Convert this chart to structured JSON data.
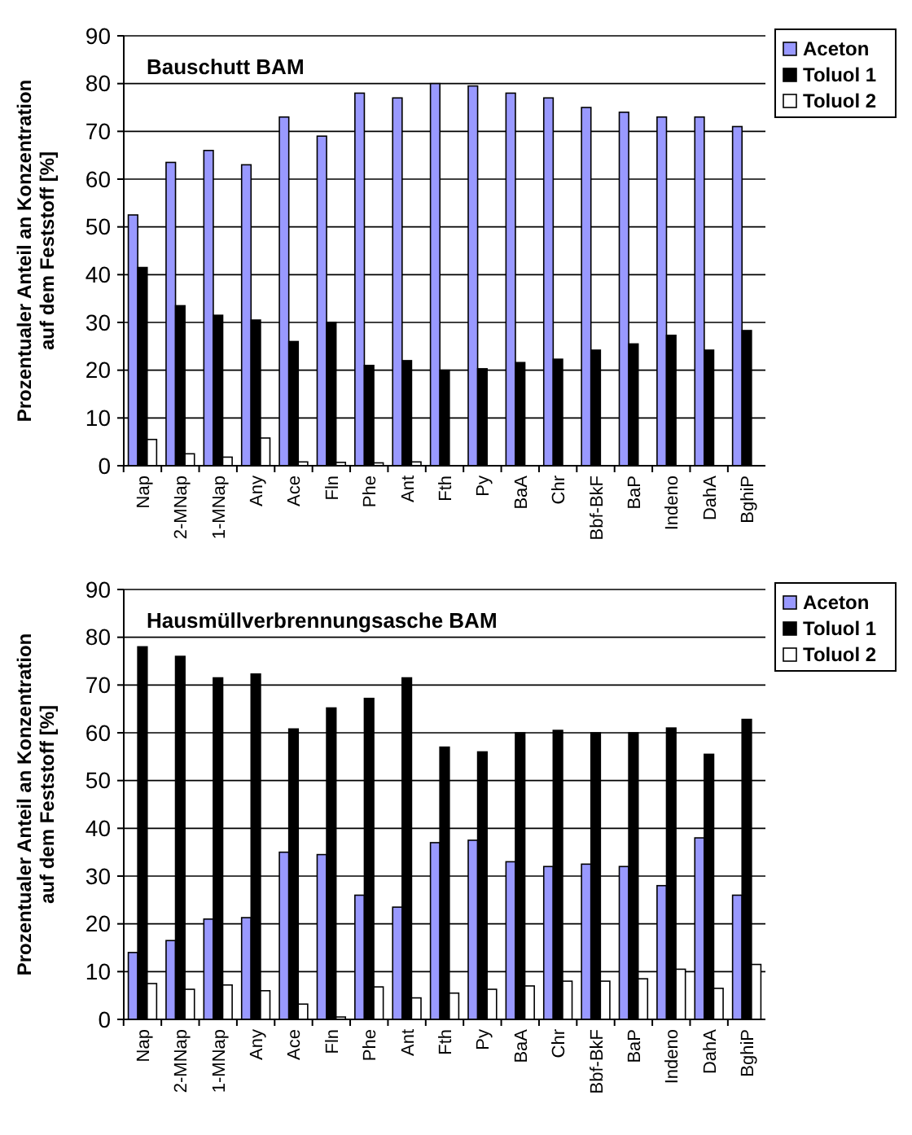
{
  "chart_data": [
    {
      "type": "bar",
      "title": "Bauschutt BAM",
      "ylabel": "Prozentualer Anteil an Konzentration\nauf dem Feststoff [%]",
      "categories": [
        "Nap",
        "2-MNap",
        "1-MNap",
        "Any",
        "Ace",
        "Fln",
        "Phe",
        "Ant",
        "Fth",
        "Py",
        "BaA",
        "Chr",
        "Bbf-BkF",
        "BaP",
        "Indeno",
        "DahA",
        "BghiP"
      ],
      "series": [
        {
          "name": "Aceton",
          "color": "#9999ff",
          "values": [
            52.5,
            63.5,
            66,
            63,
            73,
            69,
            78,
            77,
            80,
            79.5,
            78,
            77,
            75,
            74,
            73,
            73,
            71
          ]
        },
        {
          "name": "Toluol 1",
          "color": "#000000",
          "values": [
            41.5,
            33.5,
            31.5,
            30.5,
            26,
            30,
            21,
            22,
            20,
            20.3,
            21.6,
            22.3,
            24.2,
            25.5,
            27.3,
            24.2,
            28.3
          ]
        },
        {
          "name": "Toluol 2",
          "color": "#ffffff",
          "values": [
            5.5,
            2.5,
            1.8,
            5.8,
            0.8,
            0.7,
            0.6,
            0.8,
            0,
            0,
            0,
            0,
            0,
            0,
            0,
            0,
            0
          ]
        }
      ],
      "ylim": [
        0,
        90
      ],
      "yticks": [
        0,
        10,
        20,
        30,
        40,
        50,
        60,
        70,
        80,
        90
      ],
      "grid": "y",
      "legend": "top right"
    },
    {
      "type": "bar",
      "title": "Hausmüllverbrennungsasche BAM",
      "ylabel": "Prozentualer Anteil an Konzentration\nauf dem Feststoff [%]",
      "categories": [
        "Nap",
        "2-MNap",
        "1-MNap",
        "Any",
        "Ace",
        "Fln",
        "Phe",
        "Ant",
        "Fth",
        "Py",
        "BaA",
        "Chr",
        "Bbf-BkF",
        "BaP",
        "Indeno",
        "DahA",
        "BghiP"
      ],
      "series": [
        {
          "name": "Aceton",
          "color": "#9999ff",
          "values": [
            14,
            16.5,
            21,
            21.3,
            35,
            34.5,
            26,
            23.5,
            37,
            37.5,
            33,
            32,
            32.5,
            32,
            28,
            38,
            26
          ]
        },
        {
          "name": "Toluol 1",
          "color": "#000000",
          "values": [
            78,
            76,
            71.5,
            72.3,
            60.8,
            65.2,
            67.2,
            71.5,
            57,
            56,
            60,
            60.5,
            60,
            60,
            61,
            55.5,
            62.8
          ]
        },
        {
          "name": "Toluol 2",
          "color": "#ffffff",
          "values": [
            7.5,
            6.3,
            7.2,
            6,
            3.2,
            0.5,
            6.8,
            4.5,
            5.5,
            6.3,
            7,
            8,
            8,
            8.5,
            10.5,
            6.5,
            11.5
          ]
        }
      ],
      "ylim": [
        0,
        90
      ],
      "yticks": [
        0,
        10,
        20,
        30,
        40,
        50,
        60,
        70,
        80,
        90
      ],
      "grid": "y",
      "legend": "top right"
    }
  ]
}
